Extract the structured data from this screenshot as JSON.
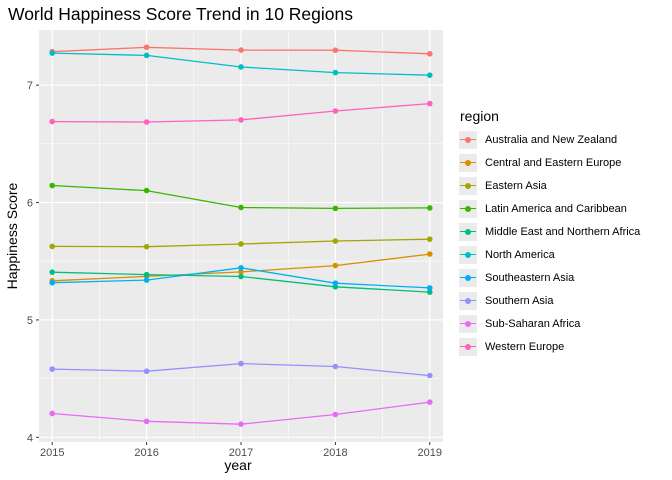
{
  "chart_data": {
    "type": "line",
    "title": "World Happiness Score Trend in 10 Regions",
    "xlabel": "year",
    "ylabel": "Happiness Score",
    "x": [
      2015,
      2016,
      2017,
      2018,
      2019
    ],
    "xticks": [
      "2015",
      "2016",
      "2017",
      "2018",
      "2019"
    ],
    "yticks": [
      "4",
      "5",
      "6",
      "7"
    ],
    "xlim": [
      2014.86,
      2019.14
    ],
    "ylim": [
      3.96,
      7.47
    ],
    "grid": true,
    "legend_title": "region",
    "legend_position": "right",
    "series": [
      {
        "name": "Australia and New Zealand",
        "color": "#F8766D",
        "values": [
          7.285,
          7.323,
          7.299,
          7.298,
          7.267
        ]
      },
      {
        "name": "Central and Eastern Europe",
        "color": "#D89000",
        "values": [
          5.333,
          5.371,
          5.409,
          5.463,
          5.561
        ]
      },
      {
        "name": "Eastern Asia",
        "color": "#A3A500",
        "values": [
          5.626,
          5.624,
          5.647,
          5.672,
          5.688
        ]
      },
      {
        "name": "Latin America and Caribbean",
        "color": "#39B600",
        "values": [
          6.145,
          6.102,
          5.958,
          5.95,
          5.954
        ]
      },
      {
        "name": "Middle East and Northern Africa",
        "color": "#00BF7D",
        "values": [
          5.407,
          5.386,
          5.37,
          5.282,
          5.237
        ]
      },
      {
        "name": "North America",
        "color": "#00BFC4",
        "values": [
          7.273,
          7.254,
          7.155,
          7.107,
          7.085
        ]
      },
      {
        "name": "Southeastern Asia",
        "color": "#00B0F6",
        "values": [
          5.317,
          5.339,
          5.444,
          5.313,
          5.273
        ]
      },
      {
        "name": "Southern Asia",
        "color": "#9590FF",
        "values": [
          4.581,
          4.563,
          4.628,
          4.603,
          4.526
        ]
      },
      {
        "name": "Sub-Saharan Africa",
        "color": "#E76BF3",
        "values": [
          4.203,
          4.136,
          4.112,
          4.194,
          4.3
        ]
      },
      {
        "name": "Western Europe",
        "color": "#FF62BC",
        "values": [
          6.69,
          6.686,
          6.704,
          6.78,
          6.843
        ]
      }
    ]
  }
}
